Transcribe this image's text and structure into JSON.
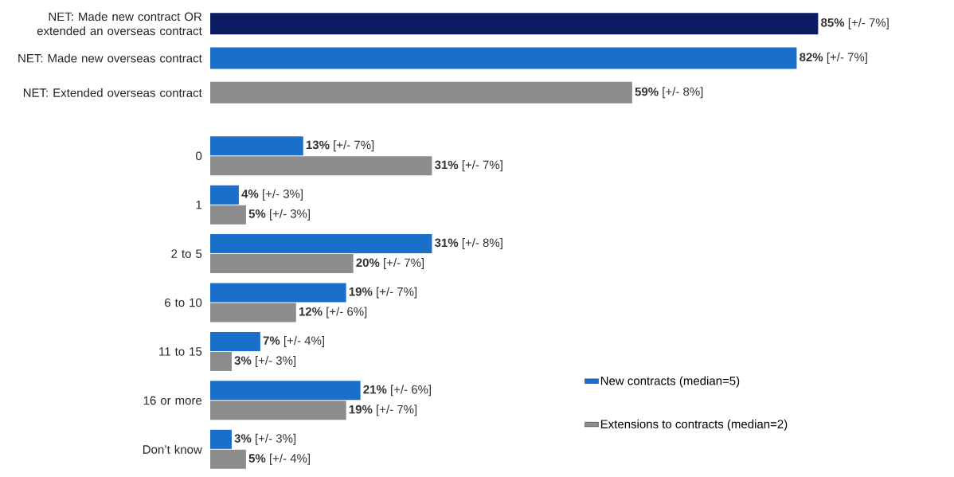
{
  "chart_data": [
    {
      "type": "bar",
      "orientation": "horizontal",
      "categories": [
        "NET: Made new contract OR extended an overseas contract",
        "NET: Made new overseas contract",
        "NET: Extended overseas contract"
      ],
      "values": [
        85,
        82,
        59
      ],
      "colors": [
        "#0d1b63",
        "#1a6fc9",
        "#8c8c8c"
      ],
      "value_labels": [
        "**85%** [+/- 7%]",
        "**82%** [+/- 7%]",
        "**59%** [+/- 8%]"
      ]
    },
    {
      "type": "bar",
      "orientation": "horizontal",
      "categories": [
        "0",
        "1",
        "2 to 5",
        "6 to 10",
        "11 to 15",
        "16 or more",
        "Don’t know"
      ],
      "legend": "right",
      "series": [
        {
          "name": "New contracts (median=5)",
          "color": "#1a6fc9",
          "values": [
            13,
            4,
            31,
            19,
            7,
            21,
            3
          ],
          "value_labels": [
            "**13%** [+/- 7%]",
            "**4%** [+/- 3%]",
            "**31%** [+/- 8%]",
            "**19%** [+/- 7%]",
            "**7%** [+/- 4%]",
            "**21%** [+/- 6%]",
            "**3%** [+/- 3%]"
          ]
        },
        {
          "name": "Extensions to contracts (median=2)",
          "color": "#8c8c8c",
          "values": [
            31,
            5,
            20,
            12,
            3,
            19,
            5
          ],
          "value_labels": [
            "**31%** [+/- 7%]",
            "**5%** [+/- 3%]",
            "**20%** [+/- 7%]",
            "**12%** [+/- 6%]",
            "**3%** [+/- 3%]",
            "**19%** [+/- 7%]",
            "**5%** [+/- 4%]"
          ]
        }
      ]
    }
  ]
}
